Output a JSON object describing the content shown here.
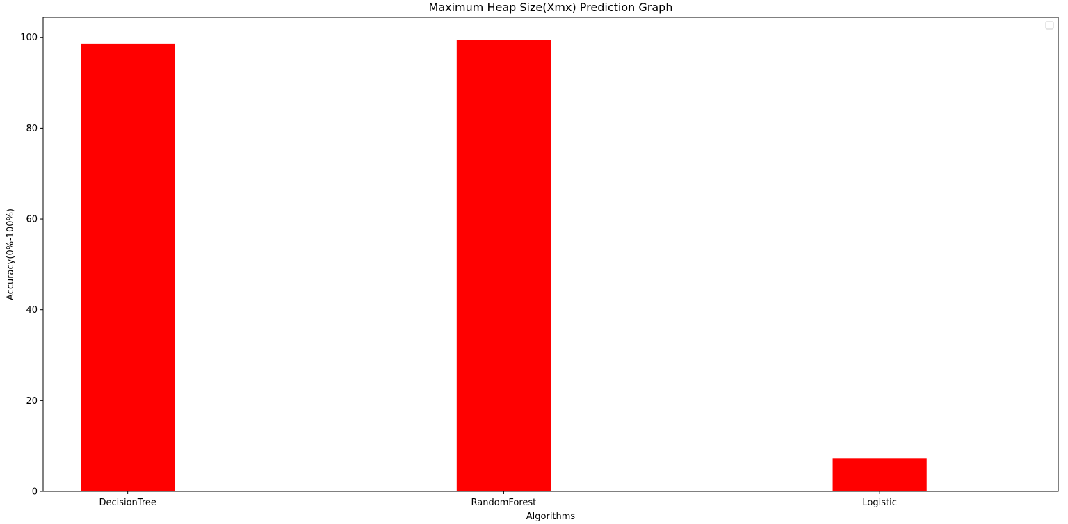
{
  "chart_data": {
    "type": "bar",
    "title": "Maximum Heap Size(Xmx) Prediction Graph",
    "xlabel": "Algorithms",
    "ylabel": "Accuracy(0%-100%)",
    "categories": [
      "DecisionTree",
      "RandomForest",
      "Logistic"
    ],
    "values": [
      98.6,
      99.4,
      7.3
    ],
    "ylim": [
      0,
      104.4
    ],
    "yticks": [
      0,
      20,
      40,
      60,
      80,
      100
    ],
    "ytick_labels": [
      "0",
      "20",
      "40",
      "60",
      "80",
      "100"
    ],
    "bar_color": "#ff0000",
    "grid": false,
    "legend": {
      "placement": "top-right",
      "entries": []
    }
  }
}
